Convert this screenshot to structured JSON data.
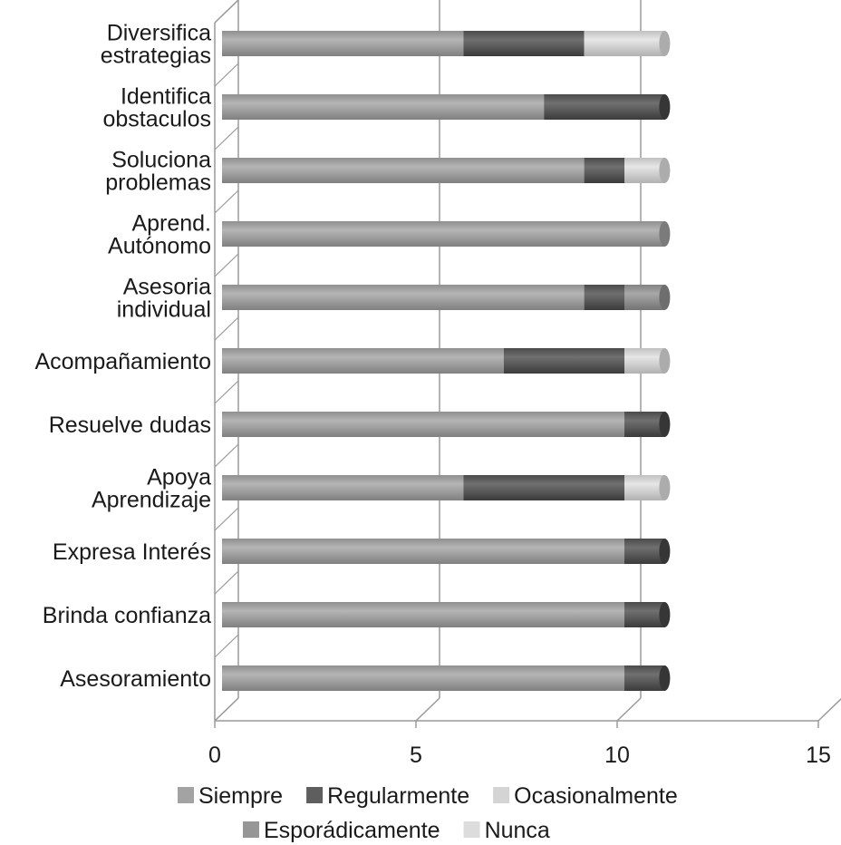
{
  "chart_data": {
    "type": "bar",
    "orientation": "horizontal",
    "stacked": true,
    "title": "",
    "xlabel": "",
    "ylabel": "",
    "xlim": [
      0,
      15
    ],
    "xticks": [
      "0",
      "5",
      "10",
      "15"
    ],
    "grid": true,
    "legend_position": "bottom",
    "categories": [
      [
        "Diversifica",
        "estrategias"
      ],
      [
        "Identifica",
        "obstaculos"
      ],
      [
        "Soluciona",
        "problemas"
      ],
      [
        "Aprend.",
        "Autónomo"
      ],
      [
        "Asesoria",
        "individual"
      ],
      [
        "Acompañamiento"
      ],
      [
        "Resuelve dudas"
      ],
      [
        "Apoya",
        "Aprendizaje"
      ],
      [
        "Expresa Interés"
      ],
      [
        "Brinda confianza"
      ],
      [
        "Asesoramiento"
      ]
    ],
    "series": [
      {
        "name": "Siempre",
        "color": "#a3a3a3",
        "values": [
          6,
          8,
          9,
          11,
          9,
          7,
          10,
          6,
          10,
          10,
          10
        ]
      },
      {
        "name": "Regularmente",
        "color": "#5e5e5e",
        "values": [
          3,
          3,
          1,
          0,
          1,
          3,
          1,
          4,
          1,
          1,
          1
        ]
      },
      {
        "name": "Ocasionalmente",
        "color": "#d4d4d4",
        "values": [
          2,
          0,
          1,
          0,
          0,
          1,
          0,
          1,
          0,
          0,
          0
        ]
      },
      {
        "name": "Esporádicamente",
        "color": "#969696",
        "values": [
          0,
          0,
          0,
          0,
          1,
          0,
          0,
          0,
          0,
          0,
          0
        ]
      },
      {
        "name": "Nunca",
        "color": "#dcdcdc",
        "values": [
          0,
          0,
          0,
          0,
          0,
          0,
          0,
          0,
          0,
          0,
          0
        ]
      }
    ]
  }
}
